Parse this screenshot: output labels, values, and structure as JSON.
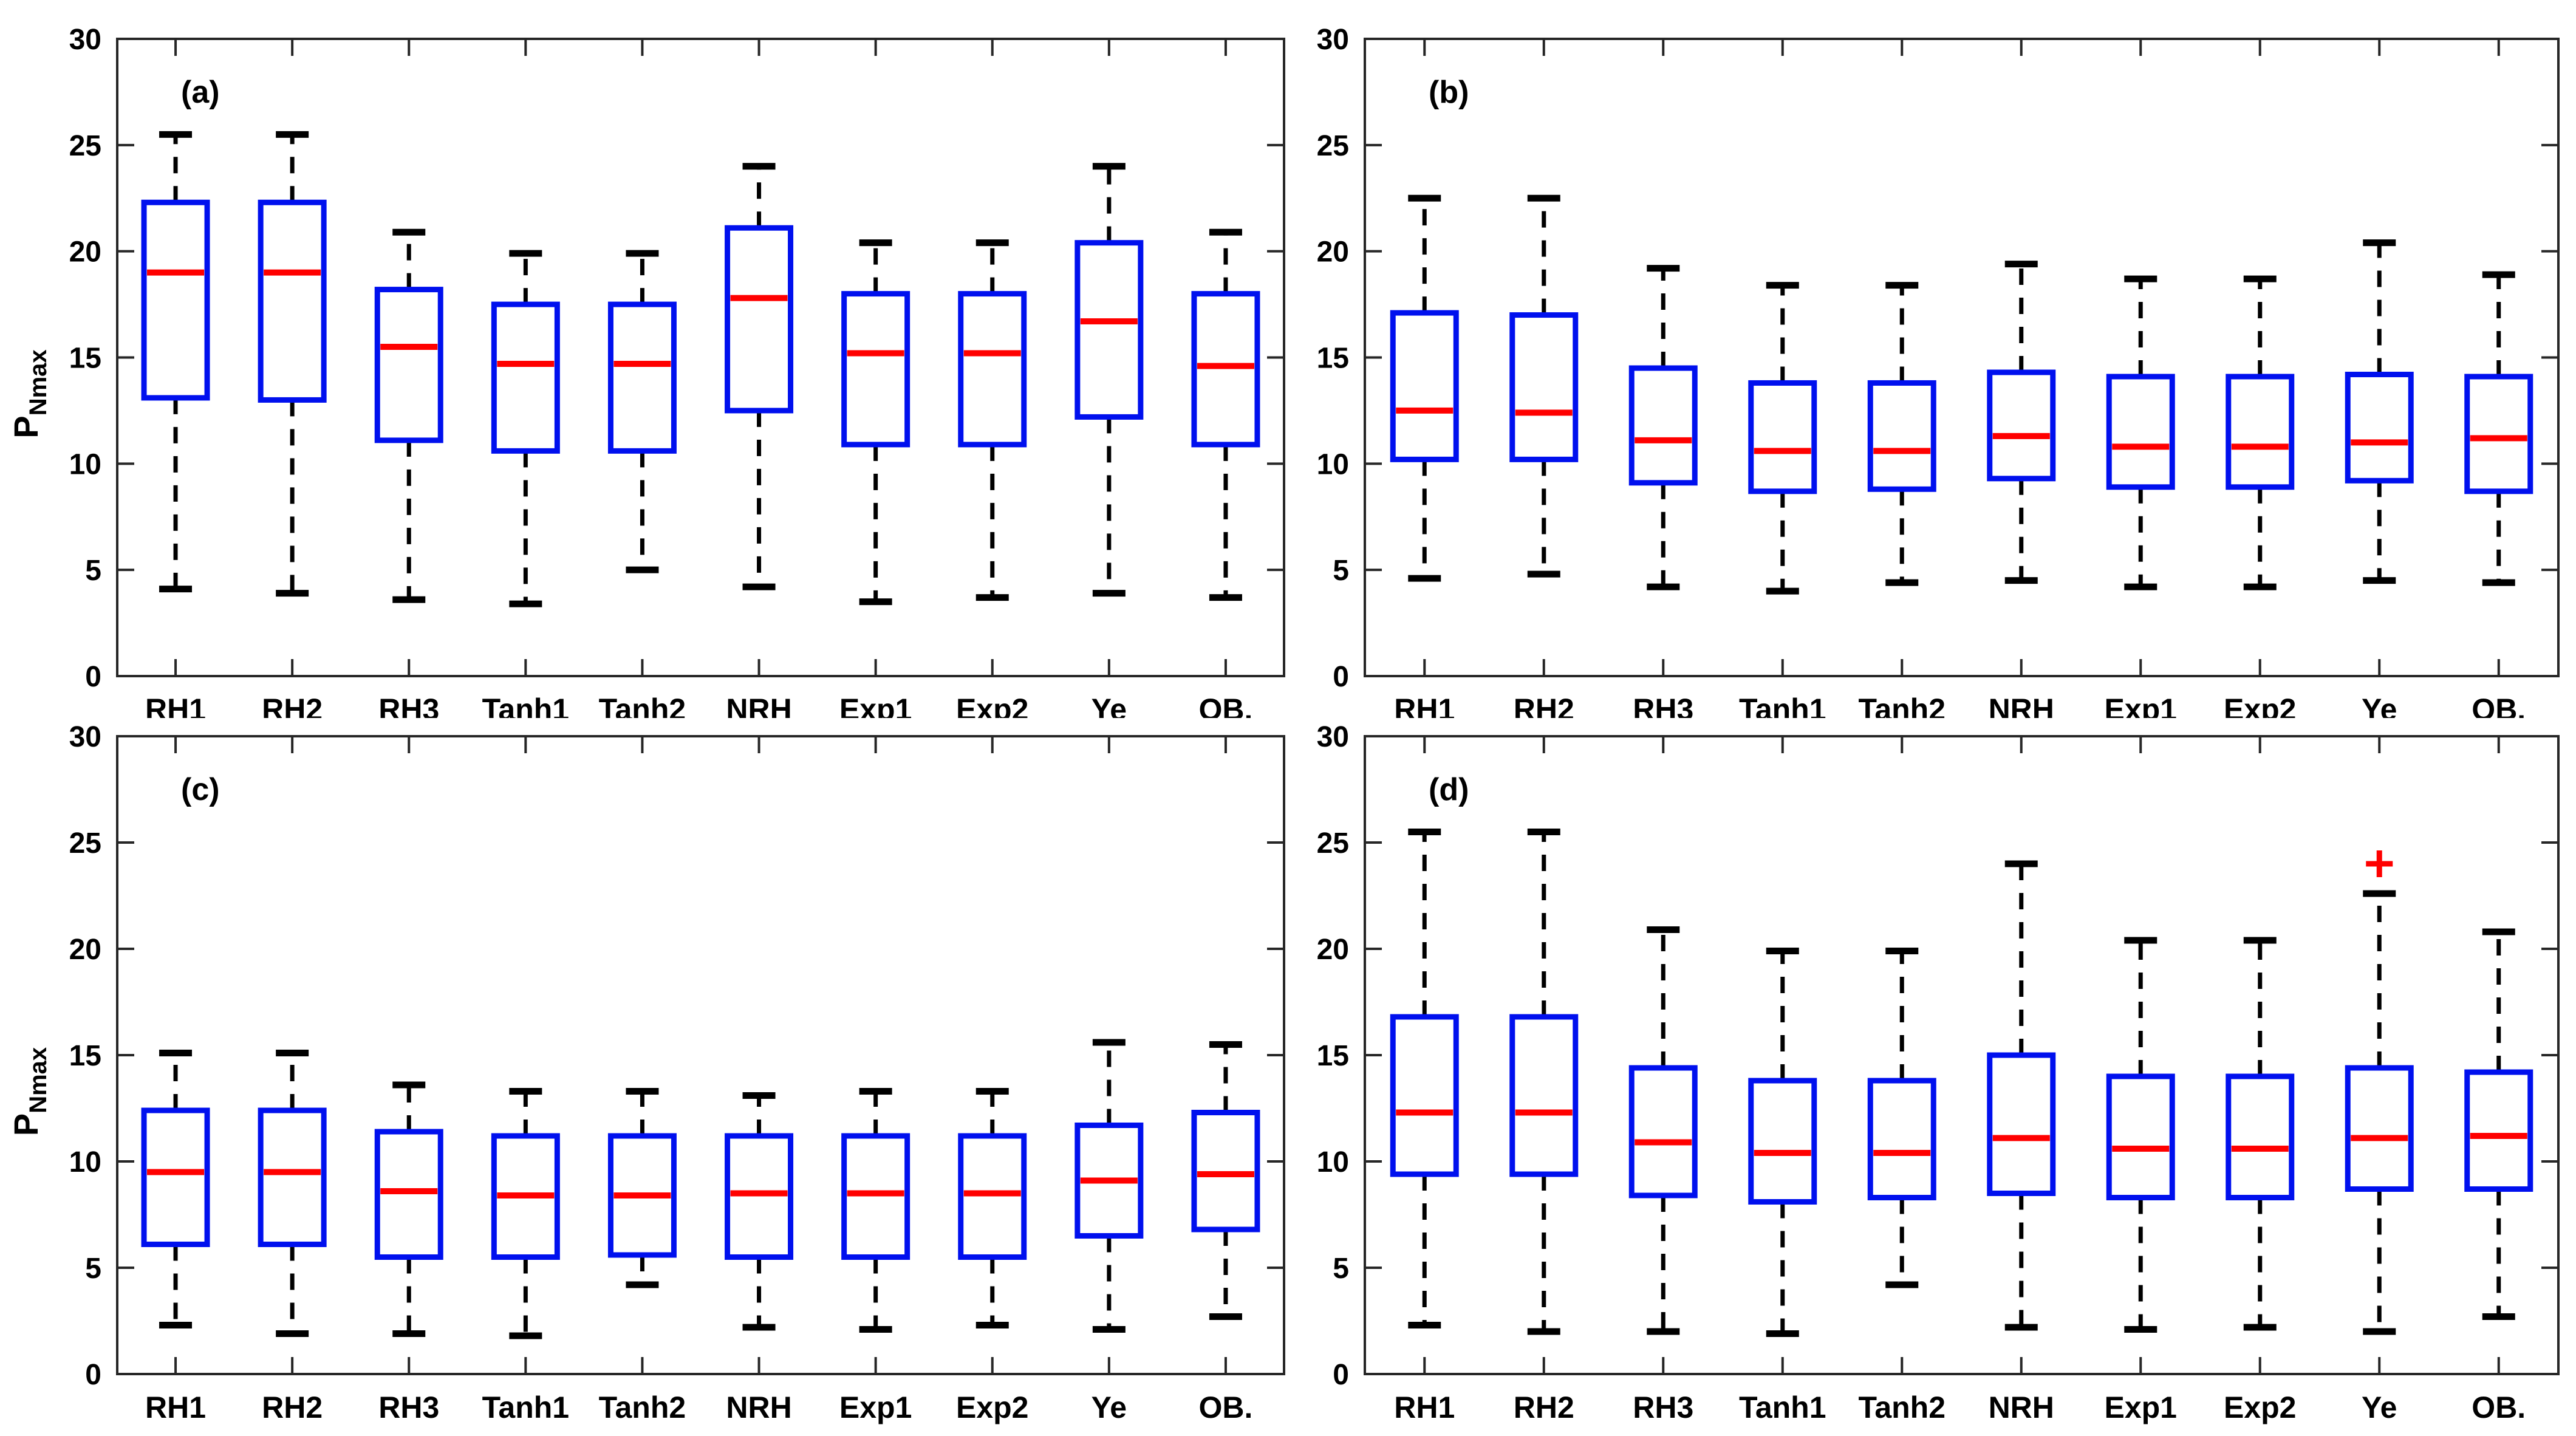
{
  "figure": {
    "y_axis_title": {
      "base": "P",
      "subscript": "Nmax"
    },
    "y_ticks": [
      "0",
      "5",
      "10",
      "15",
      "20",
      "25",
      "30"
    ],
    "y_lim": [
      0,
      30
    ],
    "categories": [
      "RH1",
      "RH2",
      "RH3",
      "Tanh1",
      "Tanh2",
      "NRH",
      "Exp1",
      "Exp2",
      "Ye",
      "OB."
    ],
    "colors": {
      "box": "#0010ee",
      "median": "#ff0000",
      "whisker": "#000000",
      "cap": "#000000",
      "outlier": "#ff0000",
      "axis": "#262626",
      "text": "#000000",
      "background": "#ffffff"
    }
  },
  "chart_data": [
    {
      "type": "boxplot",
      "panel_label": "(a)",
      "position": "top-left",
      "show_y_title": true,
      "ylabel": "P_Nmax",
      "ylim": [
        0,
        30
      ],
      "yticks": [
        0,
        5,
        10,
        15,
        20,
        25,
        30
      ],
      "categories": [
        "RH1",
        "RH2",
        "RH3",
        "Tanh1",
        "Tanh2",
        "NRH",
        "Exp1",
        "Exp2",
        "Ye",
        "OB."
      ],
      "boxes": [
        {
          "category": "RH1",
          "whisker_low": 4.1,
          "q1": 13.1,
          "median": 19.0,
          "q3": 22.3,
          "whisker_high": 25.5,
          "outliers": []
        },
        {
          "category": "RH2",
          "whisker_low": 3.9,
          "q1": 13.0,
          "median": 19.0,
          "q3": 22.3,
          "whisker_high": 25.5,
          "outliers": []
        },
        {
          "category": "RH3",
          "whisker_low": 3.6,
          "q1": 11.1,
          "median": 15.5,
          "q3": 18.2,
          "whisker_high": 20.9,
          "outliers": []
        },
        {
          "category": "Tanh1",
          "whisker_low": 3.4,
          "q1": 10.6,
          "median": 14.7,
          "q3": 17.5,
          "whisker_high": 19.9,
          "outliers": []
        },
        {
          "category": "Tanh2",
          "whisker_low": 5.0,
          "q1": 10.6,
          "median": 14.7,
          "q3": 17.5,
          "whisker_high": 19.9,
          "outliers": []
        },
        {
          "category": "NRH",
          "whisker_low": 4.2,
          "q1": 12.5,
          "median": 17.8,
          "q3": 21.1,
          "whisker_high": 24.0,
          "outliers": []
        },
        {
          "category": "Exp1",
          "whisker_low": 3.5,
          "q1": 10.9,
          "median": 15.2,
          "q3": 18.0,
          "whisker_high": 20.4,
          "outliers": []
        },
        {
          "category": "Exp2",
          "whisker_low": 3.7,
          "q1": 10.9,
          "median": 15.2,
          "q3": 18.0,
          "whisker_high": 20.4,
          "outliers": []
        },
        {
          "category": "Ye",
          "whisker_low": 3.9,
          "q1": 12.2,
          "median": 16.7,
          "q3": 20.4,
          "whisker_high": 24.0,
          "outliers": []
        },
        {
          "category": "OB.",
          "whisker_low": 3.7,
          "q1": 10.9,
          "median": 14.6,
          "q3": 18.0,
          "whisker_high": 20.9,
          "outliers": []
        }
      ]
    },
    {
      "type": "boxplot",
      "panel_label": "(b)",
      "position": "top-right",
      "show_y_title": false,
      "ylabel": "",
      "ylim": [
        0,
        30
      ],
      "yticks": [
        0,
        5,
        10,
        15,
        20,
        25,
        30
      ],
      "categories": [
        "RH1",
        "RH2",
        "RH3",
        "Tanh1",
        "Tanh2",
        "NRH",
        "Exp1",
        "Exp2",
        "Ye",
        "OB."
      ],
      "boxes": [
        {
          "category": "RH1",
          "whisker_low": 4.6,
          "q1": 10.2,
          "median": 12.5,
          "q3": 17.1,
          "whisker_high": 22.5,
          "outliers": []
        },
        {
          "category": "RH2",
          "whisker_low": 4.8,
          "q1": 10.2,
          "median": 12.4,
          "q3": 17.0,
          "whisker_high": 22.5,
          "outliers": []
        },
        {
          "category": "RH3",
          "whisker_low": 4.2,
          "q1": 9.1,
          "median": 11.1,
          "q3": 14.5,
          "whisker_high": 19.2,
          "outliers": []
        },
        {
          "category": "Tanh1",
          "whisker_low": 4.0,
          "q1": 8.7,
          "median": 10.6,
          "q3": 13.8,
          "whisker_high": 18.4,
          "outliers": []
        },
        {
          "category": "Tanh2",
          "whisker_low": 4.4,
          "q1": 8.8,
          "median": 10.6,
          "q3": 13.8,
          "whisker_high": 18.4,
          "outliers": []
        },
        {
          "category": "NRH",
          "whisker_low": 4.5,
          "q1": 9.3,
          "median": 11.3,
          "q3": 14.3,
          "whisker_high": 19.4,
          "outliers": []
        },
        {
          "category": "Exp1",
          "whisker_low": 4.2,
          "q1": 8.9,
          "median": 10.8,
          "q3": 14.1,
          "whisker_high": 18.7,
          "outliers": []
        },
        {
          "category": "Exp2",
          "whisker_low": 4.2,
          "q1": 8.9,
          "median": 10.8,
          "q3": 14.1,
          "whisker_high": 18.7,
          "outliers": []
        },
        {
          "category": "Ye",
          "whisker_low": 4.5,
          "q1": 9.2,
          "median": 11.0,
          "q3": 14.2,
          "whisker_high": 20.4,
          "outliers": []
        },
        {
          "category": "OB.",
          "whisker_low": 4.4,
          "q1": 8.7,
          "median": 11.2,
          "q3": 14.1,
          "whisker_high": 18.9,
          "outliers": []
        }
      ]
    },
    {
      "type": "boxplot",
      "panel_label": "(c)",
      "position": "bottom-left",
      "show_y_title": true,
      "ylabel": "P_Nmax",
      "ylim": [
        0,
        30
      ],
      "yticks": [
        0,
        5,
        10,
        15,
        20,
        25,
        30
      ],
      "categories": [
        "RH1",
        "RH2",
        "RH3",
        "Tanh1",
        "Tanh2",
        "NRH",
        "Exp1",
        "Exp2",
        "Ye",
        "OB."
      ],
      "boxes": [
        {
          "category": "RH1",
          "whisker_low": 2.3,
          "q1": 6.1,
          "median": 9.5,
          "q3": 12.4,
          "whisker_high": 15.1,
          "outliers": []
        },
        {
          "category": "RH2",
          "whisker_low": 1.9,
          "q1": 6.1,
          "median": 9.5,
          "q3": 12.4,
          "whisker_high": 15.1,
          "outliers": []
        },
        {
          "category": "RH3",
          "whisker_low": 1.9,
          "q1": 5.5,
          "median": 8.6,
          "q3": 11.4,
          "whisker_high": 13.6,
          "outliers": []
        },
        {
          "category": "Tanh1",
          "whisker_low": 1.8,
          "q1": 5.5,
          "median": 8.4,
          "q3": 11.2,
          "whisker_high": 13.3,
          "outliers": []
        },
        {
          "category": "Tanh2",
          "whisker_low": 4.2,
          "q1": 5.6,
          "median": 8.4,
          "q3": 11.2,
          "whisker_high": 13.3,
          "outliers": []
        },
        {
          "category": "NRH",
          "whisker_low": 2.2,
          "q1": 5.5,
          "median": 8.5,
          "q3": 11.2,
          "whisker_high": 13.1,
          "outliers": []
        },
        {
          "category": "Exp1",
          "whisker_low": 2.1,
          "q1": 5.5,
          "median": 8.5,
          "q3": 11.2,
          "whisker_high": 13.3,
          "outliers": []
        },
        {
          "category": "Exp2",
          "whisker_low": 2.3,
          "q1": 5.5,
          "median": 8.5,
          "q3": 11.2,
          "whisker_high": 13.3,
          "outliers": []
        },
        {
          "category": "Ye",
          "whisker_low": 2.1,
          "q1": 6.5,
          "median": 9.1,
          "q3": 11.7,
          "whisker_high": 15.6,
          "outliers": []
        },
        {
          "category": "OB.",
          "whisker_low": 2.7,
          "q1": 6.8,
          "median": 9.4,
          "q3": 12.3,
          "whisker_high": 15.5,
          "outliers": []
        }
      ]
    },
    {
      "type": "boxplot",
      "panel_label": "(d)",
      "position": "bottom-right",
      "show_y_title": false,
      "ylabel": "",
      "ylim": [
        0,
        30
      ],
      "yticks": [
        0,
        5,
        10,
        15,
        20,
        25,
        30
      ],
      "categories": [
        "RH1",
        "RH2",
        "RH3",
        "Tanh1",
        "Tanh2",
        "NRH",
        "Exp1",
        "Exp2",
        "Ye",
        "OB."
      ],
      "boxes": [
        {
          "category": "RH1",
          "whisker_low": 2.3,
          "q1": 9.4,
          "median": 12.3,
          "q3": 16.8,
          "whisker_high": 25.5,
          "outliers": []
        },
        {
          "category": "RH2",
          "whisker_low": 2.0,
          "q1": 9.4,
          "median": 12.3,
          "q3": 16.8,
          "whisker_high": 25.5,
          "outliers": []
        },
        {
          "category": "RH3",
          "whisker_low": 2.0,
          "q1": 8.4,
          "median": 10.9,
          "q3": 14.4,
          "whisker_high": 20.9,
          "outliers": []
        },
        {
          "category": "Tanh1",
          "whisker_low": 1.9,
          "q1": 8.1,
          "median": 10.4,
          "q3": 13.8,
          "whisker_high": 19.9,
          "outliers": []
        },
        {
          "category": "Tanh2",
          "whisker_low": 4.2,
          "q1": 8.3,
          "median": 10.4,
          "q3": 13.8,
          "whisker_high": 19.9,
          "outliers": []
        },
        {
          "category": "NRH",
          "whisker_low": 2.2,
          "q1": 8.5,
          "median": 11.1,
          "q3": 15.0,
          "whisker_high": 24.0,
          "outliers": []
        },
        {
          "category": "Exp1",
          "whisker_low": 2.1,
          "q1": 8.3,
          "median": 10.6,
          "q3": 14.0,
          "whisker_high": 20.4,
          "outliers": []
        },
        {
          "category": "Exp2",
          "whisker_low": 2.2,
          "q1": 8.3,
          "median": 10.6,
          "q3": 14.0,
          "whisker_high": 20.4,
          "outliers": []
        },
        {
          "category": "Ye",
          "whisker_low": 2.0,
          "q1": 8.7,
          "median": 11.1,
          "q3": 14.4,
          "whisker_high": 22.6,
          "outliers": [
            24.0
          ]
        },
        {
          "category": "OB.",
          "whisker_low": 2.7,
          "q1": 8.7,
          "median": 11.2,
          "q3": 14.2,
          "whisker_high": 20.8,
          "outliers": []
        }
      ]
    }
  ]
}
